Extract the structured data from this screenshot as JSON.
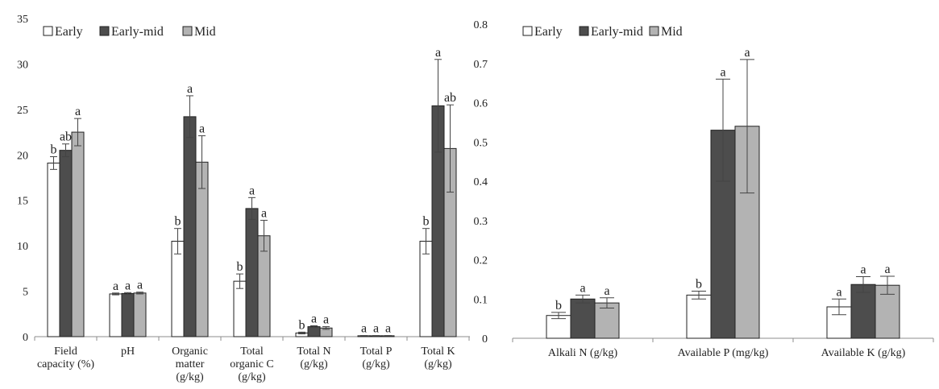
{
  "legend": {
    "early": "Early",
    "early_mid": "Early-mid",
    "mid": "Mid"
  },
  "colors": {
    "early": "#ffffff",
    "early_mid": "#4d4d4d",
    "mid": "#b3b3b3",
    "axis": "#8c8c8c",
    "text": "#222222"
  },
  "chart_data": [
    {
      "type": "bar",
      "categories": [
        [
          "Field",
          "capacity (%)"
        ],
        [
          "pH"
        ],
        [
          "Organic",
          "matter",
          "(g/kg)"
        ],
        [
          "Total",
          "organic C",
          "(g/kg)"
        ],
        [
          "Total N",
          "(g/kg)"
        ],
        [
          "Total P",
          "(g/kg)"
        ],
        [
          "Total K",
          "(g/kg)"
        ]
      ],
      "ylim": [
        0,
        35
      ],
      "yticks": [
        "0",
        "5",
        "10",
        "15",
        "20",
        "25",
        "30",
        "35"
      ],
      "legend_position": "top-left",
      "grid": false,
      "series": [
        {
          "name": "Early",
          "key": "early",
          "values": [
            19.1,
            4.7,
            10.5,
            6.1,
            0.4,
            0.1,
            10.5
          ],
          "errors": [
            0.7,
            0.1,
            1.4,
            0.8,
            0.1,
            0.02,
            1.4
          ],
          "letters": [
            "b",
            "a",
            "b",
            "b",
            "b",
            "a",
            "b"
          ]
        },
        {
          "name": "Early-mid",
          "key": "early_mid",
          "values": [
            20.5,
            4.75,
            24.2,
            14.1,
            1.1,
            0.1,
            25.4
          ],
          "errors": [
            0.7,
            0.1,
            2.3,
            1.2,
            0.1,
            0.02,
            5.1
          ],
          "letters": [
            "ab",
            "a",
            "a",
            "a",
            "a",
            "a",
            "a"
          ]
        },
        {
          "name": "Mid",
          "key": "mid",
          "values": [
            22.5,
            4.8,
            19.2,
            11.1,
            0.95,
            0.1,
            20.7
          ],
          "errors": [
            1.5,
            0.1,
            2.9,
            1.7,
            0.15,
            0.02,
            4.8
          ],
          "letters": [
            "a",
            "a",
            "a",
            "a",
            "a",
            "a",
            "ab"
          ]
        }
      ]
    },
    {
      "type": "bar",
      "categories": [
        [
          "Alkali N (g/kg)"
        ],
        [
          "Available P (mg/kg)"
        ],
        [
          "Available K (g/kg)"
        ]
      ],
      "ylim": [
        0,
        0.8
      ],
      "yticks": [
        "0",
        "0.1",
        "0.2",
        "0.3",
        "0.4",
        "0.5",
        "0.6",
        "0.7",
        "0.8"
      ],
      "legend_position": "top-left",
      "grid": false,
      "series": [
        {
          "name": "Early",
          "key": "early",
          "values": [
            0.058,
            0.11,
            0.08
          ],
          "errors": [
            0.008,
            0.01,
            0.02
          ],
          "letters": [
            "b",
            "b",
            "a"
          ]
        },
        {
          "name": "Early-mid",
          "key": "early_mid",
          "values": [
            0.1,
            0.53,
            0.137
          ],
          "errors": [
            0.01,
            0.13,
            0.02
          ],
          "letters": [
            "a",
            "a",
            "a"
          ]
        },
        {
          "name": "Mid",
          "key": "mid",
          "values": [
            0.09,
            0.54,
            0.135
          ],
          "errors": [
            0.013,
            0.17,
            0.023
          ],
          "letters": [
            "a",
            "a",
            "a"
          ]
        }
      ]
    }
  ]
}
